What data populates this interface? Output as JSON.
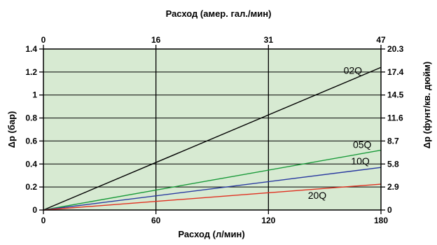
{
  "chart_data": {
    "type": "line",
    "xlabel_bottom": "Расход (л/мин)",
    "xlabel_top": "Расход (амер. гал./мин)",
    "ylabel_left": "Δp (бар)",
    "ylabel_right": "Δp (фунт/кв. дюйм)",
    "xlim": [
      0,
      180
    ],
    "ylim": [
      0,
      1.4
    ],
    "x_ticks_bottom": [
      {
        "value": 0,
        "label": "0"
      },
      {
        "value": 60,
        "label": "60"
      },
      {
        "value": 120,
        "label": "120"
      },
      {
        "value": 180,
        "label": "180"
      }
    ],
    "x_ticks_top": [
      {
        "value": 0,
        "label": "0"
      },
      {
        "value": 60,
        "label": "16"
      },
      {
        "value": 120,
        "label": "31"
      },
      {
        "value": 180,
        "label": "47"
      }
    ],
    "y_ticks_left": [
      {
        "value": 0,
        "label": "0"
      },
      {
        "value": 0.2,
        "label": "0.2"
      },
      {
        "value": 0.4,
        "label": "0.4"
      },
      {
        "value": 0.6,
        "label": "0.6"
      },
      {
        "value": 0.8,
        "label": "0.8"
      },
      {
        "value": 1.0,
        "label": "1"
      },
      {
        "value": 1.2,
        "label": "1.2"
      },
      {
        "value": 1.4,
        "label": "1.4"
      }
    ],
    "y_ticks_right": [
      {
        "value": 0,
        "label": "0"
      },
      {
        "value": 0.2,
        "label": "2.9"
      },
      {
        "value": 0.4,
        "label": "5.8"
      },
      {
        "value": 0.6,
        "label": "8.7"
      },
      {
        "value": 0.8,
        "label": "11.6"
      },
      {
        "value": 1.0,
        "label": "14.5"
      },
      {
        "value": 1.2,
        "label": "17.4"
      },
      {
        "value": 1.4,
        "label": "20.3"
      }
    ],
    "grid": true,
    "grid_lines_x": [
      60,
      120
    ],
    "grid_lines_y": [
      0.2,
      0.4,
      0.6,
      0.8,
      1.0,
      1.2
    ],
    "series": [
      {
        "name": "02Q",
        "color": "#000000",
        "x": [
          0,
          180
        ],
        "y": [
          0,
          1.24
        ]
      },
      {
        "name": "05Q",
        "color": "#1a9a3a",
        "x": [
          0,
          180
        ],
        "y": [
          0,
          0.52
        ]
      },
      {
        "name": "10Q",
        "color": "#2a3aa0",
        "x": [
          0,
          180
        ],
        "y": [
          0,
          0.37
        ]
      },
      {
        "name": "20Q",
        "color": "#e03020",
        "x": [
          0,
          180
        ],
        "y": [
          0,
          0.225
        ]
      }
    ],
    "colors": {
      "plot_background": "#d7ead2",
      "grid": "#000000",
      "frame": "#000000"
    }
  }
}
